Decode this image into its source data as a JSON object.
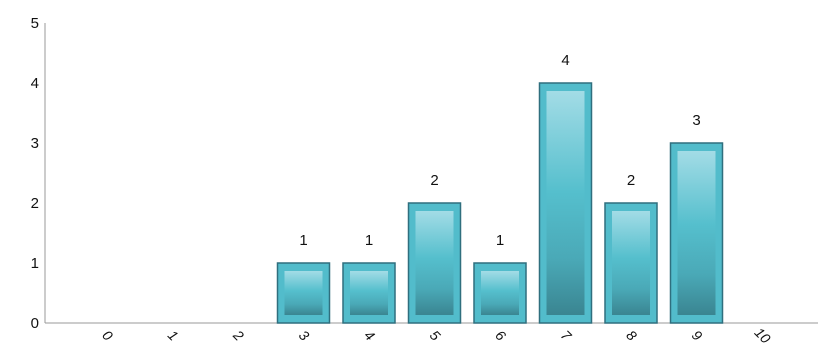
{
  "chart_data": {
    "type": "bar",
    "categories": [
      "0",
      "1",
      "2",
      "3",
      "4",
      "5",
      "6",
      "7",
      "8",
      "9",
      "10"
    ],
    "values": [
      0,
      0,
      0,
      1,
      1,
      2,
      1,
      4,
      2,
      3,
      0
    ],
    "ylim": [
      0,
      5
    ],
    "yticks": [
      "0",
      "1",
      "2",
      "3",
      "4",
      "5"
    ],
    "title": "",
    "xlabel": "",
    "ylabel": "",
    "grid": false,
    "legend": "none",
    "colors": {
      "bar_top": "#9fd9e3",
      "bar_mid": "#52bccb",
      "bar_bottom": "#3d8a96",
      "bar_border": "#2f6f7e",
      "axis": "#999999"
    }
  }
}
